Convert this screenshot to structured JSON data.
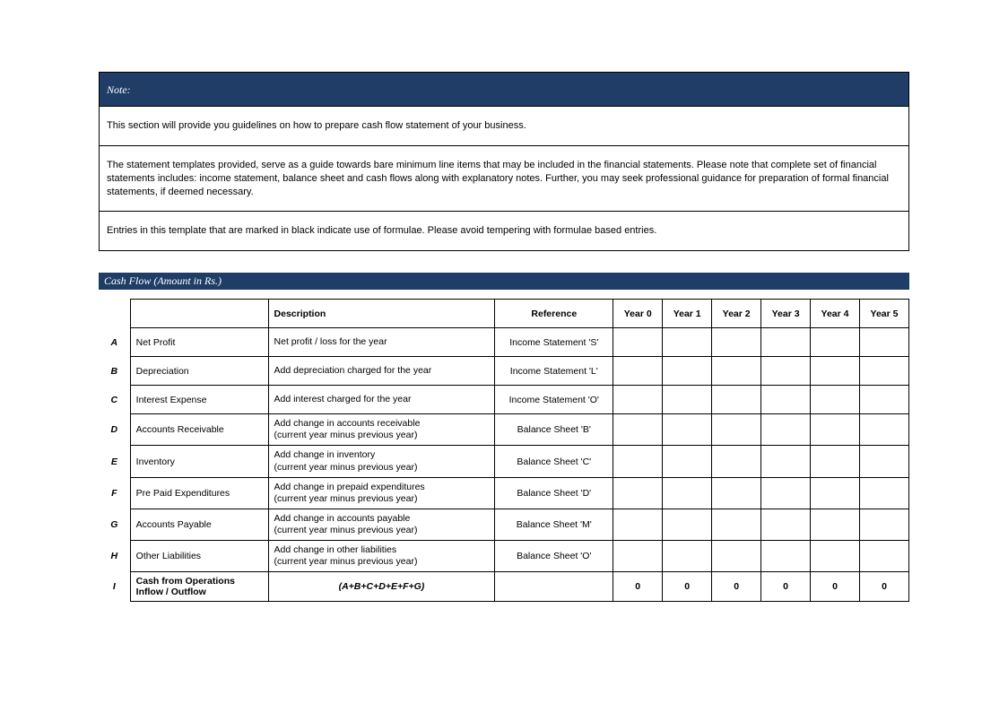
{
  "colors": {
    "header_bg": "#1f3d66",
    "header_text": "#ffffff",
    "border": "#000000",
    "body_text": "#000000",
    "page_bg": "#ffffff"
  },
  "fonts": {
    "body_family": "Arial, Helvetica, sans-serif",
    "header_family": "Georgia, 'Times New Roman', serif",
    "body_size_pt": 8,
    "header_size_pt": 9
  },
  "note": {
    "title": "Note:",
    "paragraphs": [
      "This section will provide you guidelines on how to prepare cash flow statement of your business.",
      "The statement templates provided, serve as a guide towards bare minimum line items that may be included in the financial statements. Please note that complete set of financial statements includes: income statement, balance sheet and cash flows along with explanatory notes. Further, you may seek professional guidance for preparation of formal financial statements, if deemed necessary.",
      "Entries in this template that are marked in black indicate use of formulae. Please avoid tempering with formulae based entries."
    ]
  },
  "cashflow": {
    "section_title": "Cash Flow (Amount in Rs.)",
    "headers": {
      "description": "Description",
      "reference": "Reference",
      "years": [
        "Year 0",
        "Year 1",
        "Year 2",
        "Year 3",
        "Year 4",
        "Year 5"
      ]
    },
    "rows": [
      {
        "letter": "A",
        "item": "Net Profit",
        "description": "Net profit / loss for the year",
        "reference": "Income Statement 'S'",
        "values": [
          "",
          "",
          "",
          "",
          "",
          ""
        ]
      },
      {
        "letter": "B",
        "item": "Depreciation",
        "description": "Add depreciation charged for the year",
        "reference": "Income Statement 'L'",
        "values": [
          "",
          "",
          "",
          "",
          "",
          ""
        ]
      },
      {
        "letter": "C",
        "item": "Interest Expense",
        "description": "Add interest charged for the year",
        "reference": "Income Statement 'O'",
        "values": [
          "",
          "",
          "",
          "",
          "",
          ""
        ]
      },
      {
        "letter": "D",
        "item": "Accounts Receivable",
        "description": "Add change in accounts receivable\n(current year minus previous year)",
        "reference": "Balance Sheet 'B'",
        "values": [
          "",
          "",
          "",
          "",
          "",
          ""
        ]
      },
      {
        "letter": "E",
        "item": "Inventory",
        "description": "Add change in inventory\n(current year minus previous year)",
        "reference": "Balance Sheet 'C'",
        "values": [
          "",
          "",
          "",
          "",
          "",
          ""
        ]
      },
      {
        "letter": "F",
        "item": "Pre Paid Expenditures",
        "description": "Add change in prepaid expenditures\n(current year minus previous year)",
        "reference": "Balance Sheet 'D'",
        "values": [
          "",
          "",
          "",
          "",
          "",
          ""
        ]
      },
      {
        "letter": "G",
        "item": "Accounts Payable",
        "description": "Add change in accounts payable\n(current year minus previous year)",
        "reference": "Balance Sheet 'M'",
        "values": [
          "",
          "",
          "",
          "",
          "",
          ""
        ]
      },
      {
        "letter": "H",
        "item": "Other Liabilities",
        "description": "Add change in other liabilities\n(current year minus previous year)",
        "reference": "Balance Sheet 'O'",
        "values": [
          "",
          "",
          "",
          "",
          "",
          ""
        ]
      }
    ],
    "total_row": {
      "letter": "I",
      "item": "Cash from Operations Inflow / Outflow",
      "formula": "(A+B+C+D+E+F+G)",
      "reference": "",
      "values": [
        "0",
        "0",
        "0",
        "0",
        "0",
        "0"
      ]
    }
  }
}
